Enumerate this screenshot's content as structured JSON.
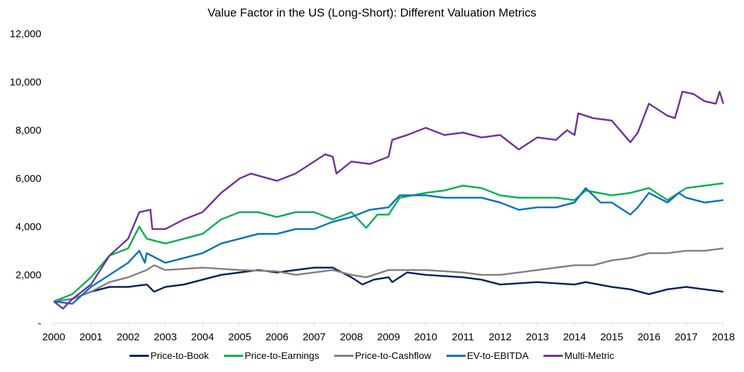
{
  "chart_data": {
    "type": "line",
    "title": "Value Factor in the US (Long-Short): Different Valuation Metrics",
    "xlabel": "",
    "ylabel": "",
    "xlim": [
      2000,
      2018
    ],
    "ylim": [
      0,
      12000
    ],
    "x_ticks": [
      "2000",
      "2001",
      "2002",
      "2003",
      "2004",
      "2005",
      "2006",
      "2007",
      "2008",
      "2009",
      "2010",
      "2011",
      "2012",
      "2013",
      "2014",
      "2015",
      "2016",
      "2017",
      "2018"
    ],
    "y_ticks": [
      {
        "value": 0,
        "label": "-"
      },
      {
        "value": 2000,
        "label": "2,000"
      },
      {
        "value": 4000,
        "label": "4,000"
      },
      {
        "value": 6000,
        "label": "6,000"
      },
      {
        "value": 8000,
        "label": "8,000"
      },
      {
        "value": 10000,
        "label": "10,000"
      },
      {
        "value": 12000,
        "label": "12,000"
      }
    ],
    "grid": false,
    "legend": "bottom",
    "series": [
      {
        "name": "Price-to-Book",
        "color": "#002060",
        "points": [
          [
            2000,
            900
          ],
          [
            2000.5,
            1000
          ],
          [
            2001,
            1300
          ],
          [
            2001.5,
            1500
          ],
          [
            2002,
            1500
          ],
          [
            2002.5,
            1600
          ],
          [
            2002.7,
            1300
          ],
          [
            2003,
            1500
          ],
          [
            2003.5,
            1600
          ],
          [
            2004,
            1800
          ],
          [
            2004.5,
            2000
          ],
          [
            2005,
            2100
          ],
          [
            2005.5,
            2200
          ],
          [
            2006,
            2100
          ],
          [
            2006.5,
            2200
          ],
          [
            2007,
            2300
          ],
          [
            2007.5,
            2300
          ],
          [
            2008,
            1900
          ],
          [
            2008.3,
            1600
          ],
          [
            2008.6,
            1800
          ],
          [
            2009,
            1900
          ],
          [
            2009.1,
            1700
          ],
          [
            2009.5,
            2100
          ],
          [
            2010,
            2000
          ],
          [
            2011,
            1900
          ],
          [
            2011.5,
            1800
          ],
          [
            2012,
            1600
          ],
          [
            2013,
            1700
          ],
          [
            2014,
            1600
          ],
          [
            2014.3,
            1700
          ],
          [
            2015,
            1500
          ],
          [
            2015.5,
            1400
          ],
          [
            2016,
            1200
          ],
          [
            2016.5,
            1400
          ],
          [
            2017,
            1500
          ],
          [
            2018,
            1300
          ]
        ]
      },
      {
        "name": "Price-to-Earnings",
        "color": "#00B050",
        "points": [
          [
            2000,
            900
          ],
          [
            2000.5,
            1200
          ],
          [
            2001,
            1900
          ],
          [
            2001.5,
            2800
          ],
          [
            2002,
            3100
          ],
          [
            2002.3,
            4000
          ],
          [
            2002.5,
            3500
          ],
          [
            2003,
            3300
          ],
          [
            2003.5,
            3500
          ],
          [
            2004,
            3700
          ],
          [
            2004.5,
            4300
          ],
          [
            2005,
            4600
          ],
          [
            2005.5,
            4600
          ],
          [
            2006,
            4400
          ],
          [
            2006.5,
            4600
          ],
          [
            2007,
            4600
          ],
          [
            2007.5,
            4300
          ],
          [
            2008,
            4600
          ],
          [
            2008.4,
            3950
          ],
          [
            2008.7,
            4500
          ],
          [
            2009,
            4500
          ],
          [
            2009.3,
            5200
          ],
          [
            2010,
            5400
          ],
          [
            2010.5,
            5500
          ],
          [
            2011,
            5700
          ],
          [
            2011.5,
            5600
          ],
          [
            2012,
            5300
          ],
          [
            2012.5,
            5200
          ],
          [
            2013,
            5200
          ],
          [
            2013.5,
            5200
          ],
          [
            2014,
            5100
          ],
          [
            2014.3,
            5500
          ],
          [
            2015,
            5300
          ],
          [
            2015.5,
            5400
          ],
          [
            2016,
            5600
          ],
          [
            2016.5,
            5100
          ],
          [
            2017,
            5600
          ],
          [
            2017.5,
            5700
          ],
          [
            2018,
            5800
          ]
        ]
      },
      {
        "name": "Price-to-Cashflow",
        "color": "#808080",
        "points": [
          [
            2000,
            900
          ],
          [
            2000.5,
            1000
          ],
          [
            2001,
            1300
          ],
          [
            2001.5,
            1700
          ],
          [
            2002,
            1900
          ],
          [
            2002.5,
            2200
          ],
          [
            2002.7,
            2400
          ],
          [
            2003,
            2200
          ],
          [
            2004,
            2300
          ],
          [
            2005,
            2200
          ],
          [
            2006,
            2150
          ],
          [
            2006.5,
            2000
          ],
          [
            2007,
            2100
          ],
          [
            2007.5,
            2200
          ],
          [
            2008,
            2000
          ],
          [
            2008.4,
            1900
          ],
          [
            2009,
            2200
          ],
          [
            2010,
            2200
          ],
          [
            2011,
            2100
          ],
          [
            2011.5,
            2000
          ],
          [
            2012,
            2000
          ],
          [
            2013,
            2200
          ],
          [
            2013.5,
            2300
          ],
          [
            2014,
            2400
          ],
          [
            2014.5,
            2400
          ],
          [
            2015,
            2600
          ],
          [
            2015.5,
            2700
          ],
          [
            2016,
            2900
          ],
          [
            2016.5,
            2900
          ],
          [
            2017,
            3000
          ],
          [
            2017.5,
            3000
          ],
          [
            2018,
            3100
          ]
        ]
      },
      {
        "name": "EV-to-EBITDA",
        "color": "#0070C0",
        "points": [
          [
            2000,
            900
          ],
          [
            2000.5,
            800
          ],
          [
            2001,
            1500
          ],
          [
            2001.5,
            2000
          ],
          [
            2002,
            2500
          ],
          [
            2002.3,
            3000
          ],
          [
            2002.45,
            2500
          ],
          [
            2002.5,
            2900
          ],
          [
            2003,
            2500
          ],
          [
            2003.5,
            2700
          ],
          [
            2004,
            2900
          ],
          [
            2004.5,
            3300
          ],
          [
            2005,
            3500
          ],
          [
            2005.5,
            3700
          ],
          [
            2006,
            3700
          ],
          [
            2006.5,
            3900
          ],
          [
            2007,
            3900
          ],
          [
            2007.5,
            4200
          ],
          [
            2008,
            4400
          ],
          [
            2008.5,
            4700
          ],
          [
            2009,
            4800
          ],
          [
            2009.3,
            5300
          ],
          [
            2010,
            5300
          ],
          [
            2010.5,
            5200
          ],
          [
            2011,
            5200
          ],
          [
            2011.5,
            5200
          ],
          [
            2012,
            5000
          ],
          [
            2012.5,
            4700
          ],
          [
            2013,
            4800
          ],
          [
            2013.5,
            4800
          ],
          [
            2014,
            5000
          ],
          [
            2014.3,
            5600
          ],
          [
            2014.7,
            5000
          ],
          [
            2015,
            5000
          ],
          [
            2015.5,
            4500
          ],
          [
            2015.7,
            4800
          ],
          [
            2016,
            5400
          ],
          [
            2016.5,
            5000
          ],
          [
            2016.8,
            5400
          ],
          [
            2017,
            5200
          ],
          [
            2017.5,
            5000
          ],
          [
            2018,
            5100
          ]
        ]
      },
      {
        "name": "Multi-Metric",
        "color": "#7030A0",
        "points": [
          [
            2000,
            900
          ],
          [
            2000.25,
            600
          ],
          [
            2000.5,
            1000
          ],
          [
            2001,
            1600
          ],
          [
            2001.5,
            2800
          ],
          [
            2002,
            3500
          ],
          [
            2002.3,
            4600
          ],
          [
            2002.6,
            4700
          ],
          [
            2002.65,
            3900
          ],
          [
            2003,
            3900
          ],
          [
            2003.5,
            4300
          ],
          [
            2004,
            4600
          ],
          [
            2004.5,
            5400
          ],
          [
            2005,
            6000
          ],
          [
            2005.3,
            6200
          ],
          [
            2006,
            5900
          ],
          [
            2006.5,
            6200
          ],
          [
            2007,
            6700
          ],
          [
            2007.3,
            7000
          ],
          [
            2007.5,
            6900
          ],
          [
            2007.6,
            6200
          ],
          [
            2008,
            6700
          ],
          [
            2008.5,
            6600
          ],
          [
            2009,
            6900
          ],
          [
            2009.1,
            7600
          ],
          [
            2009.5,
            7800
          ],
          [
            2010,
            8100
          ],
          [
            2010.5,
            7800
          ],
          [
            2011,
            7900
          ],
          [
            2011.5,
            7700
          ],
          [
            2012,
            7800
          ],
          [
            2012.5,
            7200
          ],
          [
            2013,
            7700
          ],
          [
            2013.5,
            7600
          ],
          [
            2013.8,
            8000
          ],
          [
            2014,
            7800
          ],
          [
            2014.1,
            8700
          ],
          [
            2014.5,
            8500
          ],
          [
            2015,
            8400
          ],
          [
            2015.5,
            7500
          ],
          [
            2015.7,
            7900
          ],
          [
            2016,
            9100
          ],
          [
            2016.5,
            8600
          ],
          [
            2016.7,
            8500
          ],
          [
            2016.9,
            9600
          ],
          [
            2017.2,
            9500
          ],
          [
            2017.5,
            9200
          ],
          [
            2017.8,
            9100
          ],
          [
            2017.9,
            9600
          ],
          [
            2018,
            9100
          ]
        ]
      }
    ]
  }
}
